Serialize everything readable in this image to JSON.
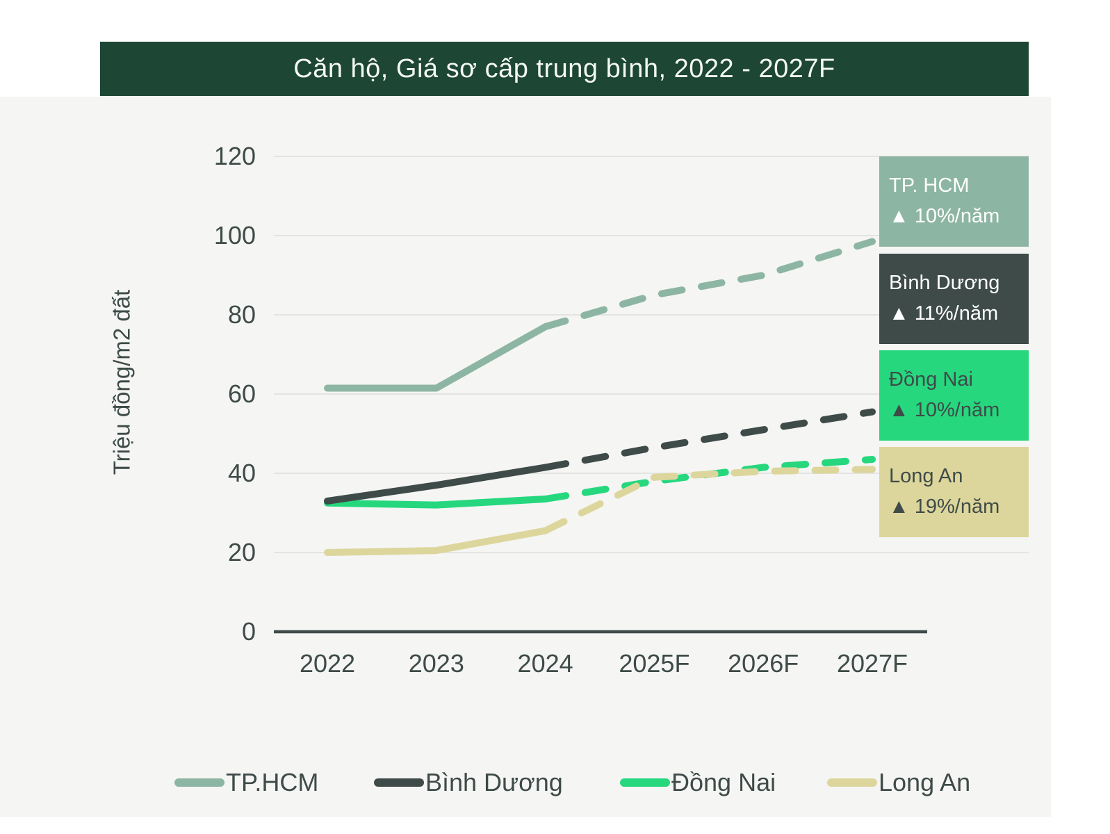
{
  "title": "Căn hộ, Giá sơ cấp trung bình, 2022 - 2027F",
  "colors": {
    "title_bar_bg": "#1d4635",
    "title_text": "#f4f8f5",
    "panel_bg": "#f5f5f4",
    "gridline": "#e3e3e2",
    "axis": "#3e4b48",
    "text": "#3e4b48"
  },
  "chart_data": {
    "type": "line",
    "title": "Căn hộ, Giá sơ cấp trung bình, 2022 - 2027F",
    "xlabel": "",
    "ylabel": "Triệu đồng/m2 đất",
    "categories": [
      "2022",
      "2023",
      "2024",
      "2025F",
      "2026F",
      "2027F"
    ],
    "yticks": [
      0,
      20,
      40,
      60,
      80,
      100,
      120
    ],
    "ylim": [
      0,
      120
    ],
    "grid": true,
    "legend_position": "bottom",
    "forecast_from_index": 2,
    "line_style_note": "solid 2022-2024, dashed 2024-2027F",
    "series": [
      {
        "name": "TP.HCM",
        "box_label": "TP. HCM",
        "growth": "▲ 10%/năm",
        "color": "#8db5a4",
        "box_text_color": "#ffffff",
        "values": [
          61.5,
          61.5,
          77,
          85,
          90,
          98.5
        ]
      },
      {
        "name": "Bình Dương",
        "box_label": "Bình Dương",
        "growth": "▲ 11%/năm",
        "color": "#3e4b48",
        "box_text_color": "#ffffff",
        "values": [
          33,
          37,
          41.5,
          46.5,
          51,
          55.5
        ]
      },
      {
        "name": "Đồng Nai",
        "box_label": "Đồng Nai",
        "growth": "▲ 10%/năm",
        "color": "#26d77e",
        "box_text_color": "#3e4b48",
        "values": [
          32.5,
          32,
          33.5,
          38,
          41.5,
          43.5
        ]
      },
      {
        "name": "Long An",
        "box_label": "Long An",
        "growth": "▲ 19%/năm",
        "color": "#ddd69c",
        "box_text_color": "#3e4b48",
        "values": [
          20,
          20.5,
          25.5,
          39,
          40.5,
          41
        ]
      }
    ]
  }
}
